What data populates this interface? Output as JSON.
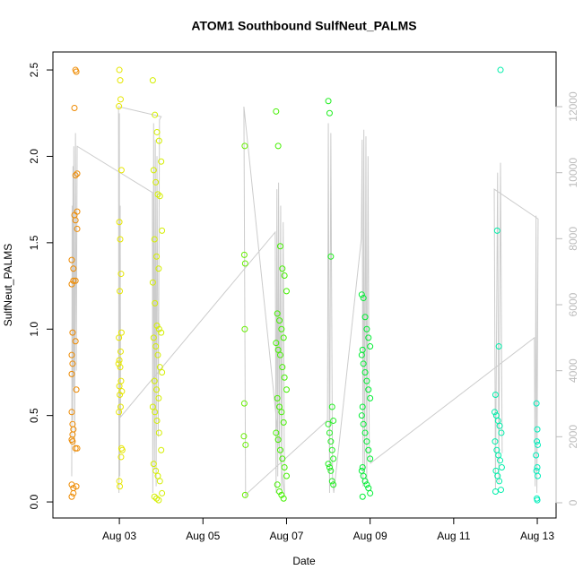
{
  "chart_data": {
    "type": "scatter",
    "title": "ATOM1 Southbound SulfNeut_PALMS",
    "x_label": "Date",
    "y_label": "SulfNeut_PALMS",
    "xlim": [
      1.41,
      13.45
    ],
    "xticks": [
      {
        "value": 3,
        "label": "Aug 03"
      },
      {
        "value": 5,
        "label": "Aug 05"
      },
      {
        "value": 7,
        "label": "Aug 07"
      },
      {
        "value": 9,
        "label": "Aug 09"
      },
      {
        "value": 11,
        "label": "Aug 11"
      },
      {
        "value": 13,
        "label": "Aug 13"
      }
    ],
    "ylim": [
      -0.093,
      2.604
    ],
    "yticks": [
      {
        "value": 0,
        "label": "0.0"
      },
      0.5,
      {
        "value": 1,
        "label": "1.0"
      },
      1.5,
      {
        "value": 2,
        "label": "2.0"
      },
      2.5
    ],
    "y2lim": [
      -462,
      13657
    ],
    "y2ticks": [
      0,
      2000,
      4000,
      6000,
      8000,
      10000,
      12000
    ],
    "series": [
      {
        "type": "line",
        "axis": "y2",
        "color": "#cccccc",
        "x": [
          1.86,
          1.87,
          1.88,
          1.89,
          1.9,
          1.91,
          1.93,
          1.95,
          1.97,
          1.99,
          3.79,
          3.8,
          3.82,
          3.84,
          3.86,
          3.88,
          3.9,
          3.93,
          3.96,
          4.0,
          2.98,
          2.99,
          3.0,
          3.01,
          3.02,
          3.03,
          6.73,
          6.75,
          6.77,
          6.79,
          6.81,
          6.83,
          6.86,
          6.88,
          6.92,
          6.95,
          5.98,
          6.02,
          6.07,
          7.98,
          8.0,
          8.03,
          8.06,
          8.1,
          8.13,
          8.79,
          8.81,
          8.83,
          8.85,
          8.87,
          8.9,
          8.92,
          8.95,
          8.98,
          9.01,
          12.93,
          12.95,
          12.97,
          12.99,
          13.02,
          11.97,
          12.0,
          12.05,
          12.08,
          12.12,
          12.16
        ],
        "values": [
          800,
          9000,
          2500,
          10200,
          3500,
          10800,
          1500,
          11200,
          4000,
          10800,
          9400,
          300,
          11500,
          1000,
          11000,
          500,
          10500,
          2000,
          11600,
          11700,
          12000,
          300,
          11800,
          800,
          9000,
          2600,
          8200,
          300,
          9500,
          800,
          9700,
          1500,
          9000,
          400,
          8500,
          200,
          12000,
          200,
          300,
          2500,
          11500,
          300,
          11200,
          800,
          300,
          8000,
          11000,
          500,
          11300,
          1000,
          11100,
          600,
          10500,
          1500,
          1200,
          5000,
          500,
          8700,
          300,
          8600,
          9500,
          400,
          10000,
          600,
          10300,
          1500
        ]
      },
      {
        "type": "scatter",
        "color": "#ee8a00",
        "x": [
          1.95,
          1.97,
          1.925,
          1.99,
          1.95,
          1.99,
          1.925,
          1.95,
          1.99,
          1.86,
          1.9,
          1.9,
          1.86,
          1.95,
          1.95,
          1.88,
          1.86,
          1.88,
          1.86,
          1.97,
          1.86,
          1.88,
          1.9,
          1.88,
          1.86,
          1.88,
          1.95,
          1.99,
          1.86,
          1.9,
          1.97,
          1.9,
          1.86
        ],
        "values": [
          2.5,
          2.49,
          2.28,
          1.9,
          1.89,
          1.68,
          1.66,
          1.63,
          1.58,
          1.4,
          1.35,
          1.28,
          1.26,
          1.28,
          0.93,
          0.98,
          0.85,
          0.8,
          0.74,
          0.65,
          0.52,
          0.45,
          0.42,
          0.39,
          0.36,
          0.35,
          0.31,
          0.31,
          0.1,
          0.08,
          0.09,
          0.05,
          0.03
        ]
      },
      {
        "type": "scatter",
        "color": "#e6e600",
        "x": [
          3.0,
          3.02,
          3.03,
          2.99,
          3.05,
          3.0,
          3.02,
          3.04,
          3.01,
          3.05,
          2.99,
          3.03,
          3.0,
          2.98,
          3.02,
          3.04,
          3.0,
          3.06,
          3.01,
          3.03,
          2.99,
          3.05,
          3.07,
          3.04,
          3.0,
          3.01
        ],
        "values": [
          2.5,
          2.44,
          2.33,
          2.29,
          1.92,
          1.62,
          1.52,
          1.32,
          1.22,
          0.98,
          0.95,
          0.87,
          0.82,
          0.8,
          0.78,
          0.7,
          0.67,
          0.64,
          0.62,
          0.55,
          0.52,
          0.31,
          0.3,
          0.26,
          0.12,
          0.09
        ]
      },
      {
        "type": "scatter",
        "color": "#d4ee00",
        "x": [
          3.8,
          3.85,
          3.9,
          3.95,
          4.0,
          3.82,
          3.87,
          3.92,
          3.97,
          4.02,
          3.84,
          3.89,
          3.94,
          3.8,
          3.85,
          3.9,
          3.95,
          4.0,
          3.82,
          3.87,
          3.92,
          3.97,
          4.02,
          3.84,
          3.89,
          3.94,
          3.8,
          3.85,
          3.9,
          3.95,
          4.0,
          3.82,
          3.87,
          3.92,
          3.97,
          4.02,
          3.84,
          3.89,
          3.94
        ],
        "values": [
          2.44,
          2.24,
          2.14,
          2.09,
          1.97,
          1.92,
          1.85,
          1.78,
          1.77,
          1.57,
          1.52,
          1.42,
          1.35,
          1.27,
          1.15,
          1.02,
          1.0,
          0.98,
          0.95,
          0.9,
          0.85,
          0.78,
          0.75,
          0.7,
          0.65,
          0.6,
          0.55,
          0.52,
          0.47,
          0.4,
          0.3,
          0.22,
          0.18,
          0.15,
          0.12,
          0.05,
          0.03,
          0.02,
          0.01
        ]
      },
      {
        "type": "scatter",
        "color": "#66ee00",
        "x": [
          6.0,
          5.99,
          6.01,
          6.0,
          5.99,
          5.98,
          6.02,
          6.01
        ],
        "values": [
          2.06,
          1.43,
          1.38,
          1.0,
          0.57,
          0.38,
          0.33,
          0.04
        ]
      },
      {
        "type": "scatter",
        "color": "#44f000",
        "x": [
          6.75,
          6.8,
          6.85,
          6.9,
          6.95,
          7.0,
          6.78,
          6.83,
          6.88,
          6.93,
          6.75,
          6.8,
          6.85,
          6.9,
          6.95,
          7.0,
          6.78,
          6.83,
          6.88,
          6.93,
          6.75,
          6.8,
          6.85,
          6.9,
          6.95,
          7.0,
          6.78,
          6.83,
          6.88,
          6.93
        ],
        "values": [
          2.26,
          2.06,
          1.48,
          1.35,
          1.31,
          1.22,
          1.09,
          1.05,
          1.0,
          0.95,
          0.92,
          0.88,
          0.85,
          0.78,
          0.72,
          0.65,
          0.6,
          0.55,
          0.52,
          0.46,
          0.4,
          0.36,
          0.3,
          0.25,
          0.2,
          0.15,
          0.1,
          0.06,
          0.04,
          0.02
        ]
      },
      {
        "type": "scatter",
        "color": "#22ee22",
        "x": [
          8.0,
          8.03,
          8.06,
          8.09,
          8.12,
          8.0,
          8.03,
          8.06,
          8.09,
          8.12,
          8.0,
          8.03,
          8.06,
          8.09,
          8.12
        ],
        "values": [
          2.32,
          2.25,
          1.42,
          0.55,
          0.47,
          0.45,
          0.4,
          0.35,
          0.3,
          0.25,
          0.22,
          0.2,
          0.18,
          0.12,
          0.1
        ]
      },
      {
        "type": "scatter",
        "color": "#00ee33",
        "x": [
          8.8,
          8.84,
          8.88,
          8.92,
          8.96,
          9.0,
          8.82,
          8.8,
          8.84,
          8.88,
          8.92,
          8.96,
          9.0,
          8.82,
          8.8,
          8.84,
          8.88,
          8.92,
          8.96,
          9.0,
          8.82,
          8.8,
          8.84,
          8.88,
          8.92,
          8.96,
          9.0,
          8.82
        ],
        "values": [
          1.2,
          1.18,
          1.07,
          1.0,
          0.95,
          0.9,
          0.88,
          0.85,
          0.8,
          0.75,
          0.7,
          0.65,
          0.6,
          0.55,
          0.5,
          0.45,
          0.4,
          0.35,
          0.3,
          0.25,
          0.2,
          0.18,
          0.15,
          0.12,
          0.1,
          0.08,
          0.05,
          0.03
        ]
      },
      {
        "type": "scatter",
        "color": "#00eeaa",
        "x": [
          12.12,
          12.04,
          12.08,
          12.0,
          11.98,
          12.02,
          12.06,
          12.1,
          12.14,
          11.99,
          12.03,
          12.07,
          12.11,
          12.15,
          12.01,
          12.05,
          12.09,
          12.13,
          12.0
        ],
        "values": [
          2.5,
          1.57,
          0.9,
          0.62,
          0.52,
          0.5,
          0.47,
          0.44,
          0.4,
          0.35,
          0.3,
          0.27,
          0.24,
          0.2,
          0.18,
          0.15,
          0.12,
          0.07,
          0.06
        ]
      },
      {
        "type": "scatter",
        "color": "#00eebb",
        "x": [
          12.98,
          13.0,
          12.99,
          13.01,
          12.97,
          13.0,
          12.98,
          13.01,
          12.99,
          13.0
        ],
        "values": [
          0.57,
          0.42,
          0.35,
          0.33,
          0.27,
          0.2,
          0.18,
          0.15,
          0.02,
          0.01
        ]
      }
    ]
  }
}
